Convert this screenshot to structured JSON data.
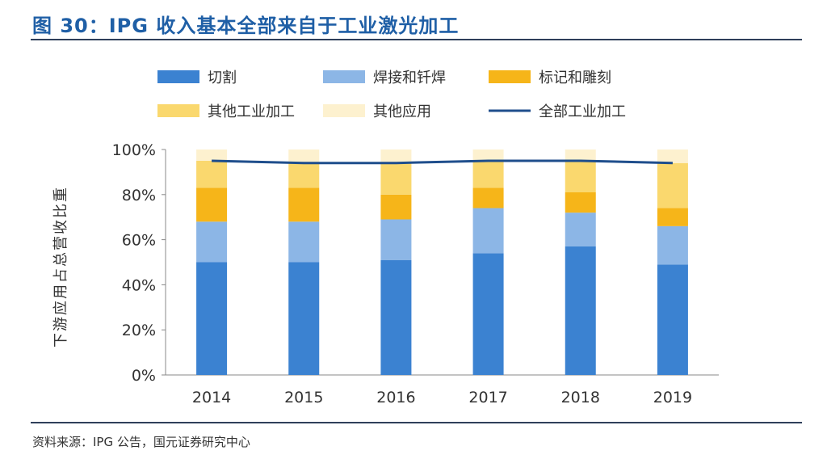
{
  "figure": {
    "title": "图 30：IPG 收入基本全部来自于工业激光加工",
    "source": "资料来源：IPG 公告，国元证券研究中心"
  },
  "colors": {
    "cut": "#3b82d1",
    "weld": "#8cb6e6",
    "mark": "#f6b519",
    "other_industrial": "#fad86e",
    "other_app": "#fdf1cf",
    "line": "#1f4e8c",
    "rule": "#2f3f5a",
    "title": "#1f5fa6"
  },
  "chart_data": {
    "type": "bar",
    "stacked": true,
    "title": "IPG 收入基本全部来自于工业激光加工",
    "xlabel": "",
    "ylabel": "下游应用占总营收比重",
    "categories": [
      "2014",
      "2015",
      "2016",
      "2017",
      "2018",
      "2019"
    ],
    "ylim": [
      0,
      100
    ],
    "yticks": [
      0,
      20,
      40,
      60,
      80,
      100
    ],
    "ytick_labels": [
      "0%",
      "20%",
      "40%",
      "60%",
      "80%",
      "100%"
    ],
    "series": [
      {
        "name": "切割",
        "color_key": "cut",
        "values": [
          50,
          50,
          51,
          54,
          57,
          49
        ]
      },
      {
        "name": "焊接和钎焊",
        "color_key": "weld",
        "values": [
          18,
          18,
          18,
          20,
          15,
          17
        ]
      },
      {
        "name": "标记和雕刻",
        "color_key": "mark",
        "values": [
          15,
          15,
          11,
          9,
          9,
          8
        ]
      },
      {
        "name": "其他工业加工",
        "color_key": "other_industrial",
        "values": [
          12,
          11,
          14,
          12,
          14,
          20
        ]
      },
      {
        "name": "其他应用",
        "color_key": "other_app",
        "values": [
          5,
          6,
          6,
          5,
          5,
          6
        ]
      }
    ],
    "line_series": {
      "name": "全部工业加工",
      "color_key": "line",
      "values": [
        95,
        94,
        94,
        95,
        95,
        94
      ]
    },
    "legend": [
      "切割",
      "焊接和钎焊",
      "标记和雕刻",
      "其他工业加工",
      "其他应用",
      "全部工业加工"
    ],
    "legend_position": "top",
    "grid": false
  }
}
